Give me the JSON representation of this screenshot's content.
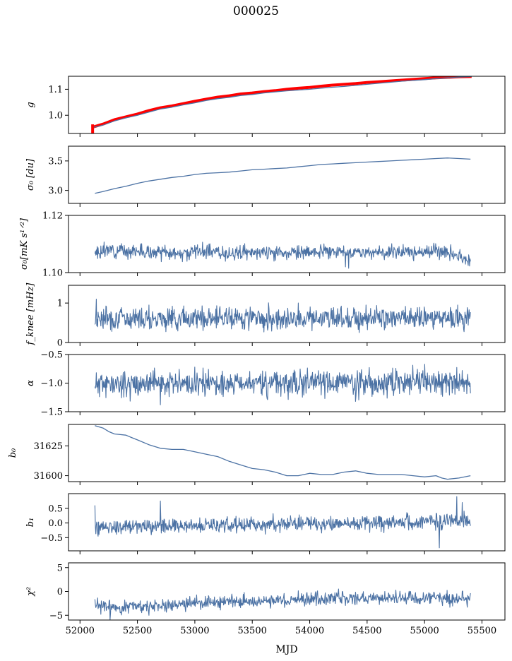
{
  "figure": {
    "title": "000025",
    "xlabel": "MJD",
    "x_ticks": [
      52000,
      52500,
      53000,
      53500,
      54000,
      54500,
      55000,
      55500
    ],
    "line_color": "#4c72a4",
    "fit_color": "#ff0000"
  },
  "chart_data": [
    {
      "type": "line",
      "ylabel": "g",
      "ylabel_kind": "g",
      "xlim": [
        51900,
        55700
      ],
      "ylim": [
        0.93,
        1.15
      ],
      "yticks": [
        1.0,
        1.1
      ],
      "series": [
        {
          "color": "#ff0000",
          "width": 4,
          "points": [
            [
              52115,
              0.955
            ],
            [
              52200,
              0.966
            ],
            [
              52300,
              0.983
            ],
            [
              52400,
              0.994
            ],
            [
              52500,
              1.005
            ],
            [
              52600,
              1.018
            ],
            [
              52700,
              1.029
            ],
            [
              52800,
              1.036
            ],
            [
              52900,
              1.045
            ],
            [
              53000,
              1.054
            ],
            [
              53100,
              1.062
            ],
            [
              53200,
              1.07
            ],
            [
              53300,
              1.075
            ],
            [
              53400,
              1.082
            ],
            [
              53500,
              1.086
            ],
            [
              53600,
              1.091
            ],
            [
              53700,
              1.095
            ],
            [
              53800,
              1.1
            ],
            [
              53900,
              1.104
            ],
            [
              54000,
              1.107
            ],
            [
              54100,
              1.112
            ],
            [
              54200,
              1.116
            ],
            [
              54300,
              1.119
            ],
            [
              54400,
              1.122
            ],
            [
              54500,
              1.126
            ],
            [
              54600,
              1.129
            ],
            [
              54700,
              1.132
            ],
            [
              54800,
              1.135
            ],
            [
              54900,
              1.138
            ],
            [
              55000,
              1.141
            ],
            [
              55100,
              1.144
            ],
            [
              55200,
              1.146
            ],
            [
              55300,
              1.148
            ],
            [
              55410,
              1.149
            ]
          ]
        },
        {
          "color": "#4c72a4",
          "width": 1.3,
          "points": [
            [
              52115,
              0.953
            ],
            [
              52200,
              0.962
            ],
            [
              52300,
              0.978
            ],
            [
              52400,
              0.99
            ],
            [
              52500,
              1.0
            ],
            [
              52600,
              1.012
            ],
            [
              52700,
              1.024
            ],
            [
              52800,
              1.031
            ],
            [
              52900,
              1.04
            ],
            [
              53000,
              1.048
            ],
            [
              53100,
              1.057
            ],
            [
              53200,
              1.064
            ],
            [
              53300,
              1.069
            ],
            [
              53400,
              1.076
            ],
            [
              53500,
              1.08
            ],
            [
              53600,
              1.086
            ],
            [
              53700,
              1.09
            ],
            [
              53800,
              1.094
            ],
            [
              53900,
              1.097
            ],
            [
              54000,
              1.1
            ],
            [
              54100,
              1.104
            ],
            [
              54200,
              1.108
            ],
            [
              54300,
              1.111
            ],
            [
              54400,
              1.115
            ],
            [
              54500,
              1.119
            ],
            [
              54600,
              1.123
            ],
            [
              54700,
              1.127
            ],
            [
              54800,
              1.131
            ],
            [
              54900,
              1.134
            ],
            [
              55000,
              1.137
            ],
            [
              55100,
              1.141
            ],
            [
              55200,
              1.144
            ],
            [
              55300,
              1.147
            ],
            [
              55410,
              1.149
            ]
          ]
        }
      ],
      "spike": {
        "x": 52110,
        "y_from": 0.93,
        "y_to": 0.965
      }
    },
    {
      "type": "line",
      "ylabel": "σ₀ [du]",
      "ylabel_kind": "sigma_du",
      "xlim": [
        51900,
        55700
      ],
      "ylim": [
        2.78,
        3.75
      ],
      "yticks": [
        3.0,
        3.5
      ],
      "series": [
        {
          "color": "#4c72a4",
          "width": 1.3,
          "points": [
            [
              52130,
              2.95
            ],
            [
              52200,
              2.98
            ],
            [
              52300,
              3.03
            ],
            [
              52400,
              3.07
            ],
            [
              52500,
              3.12
            ],
            [
              52600,
              3.16
            ],
            [
              52700,
              3.19
            ],
            [
              52800,
              3.22
            ],
            [
              52900,
              3.24
            ],
            [
              53000,
              3.27
            ],
            [
              53100,
              3.29
            ],
            [
              53200,
              3.3
            ],
            [
              53300,
              3.31
            ],
            [
              53400,
              3.33
            ],
            [
              53500,
              3.35
            ],
            [
              53600,
              3.36
            ],
            [
              53700,
              3.37
            ],
            [
              53800,
              3.38
            ],
            [
              53900,
              3.4
            ],
            [
              54000,
              3.42
            ],
            [
              54100,
              3.44
            ],
            [
              54200,
              3.45
            ],
            [
              54300,
              3.46
            ],
            [
              54400,
              3.47
            ],
            [
              54500,
              3.48
            ],
            [
              54600,
              3.49
            ],
            [
              54700,
              3.5
            ],
            [
              54800,
              3.51
            ],
            [
              54900,
              3.52
            ],
            [
              55000,
              3.53
            ],
            [
              55100,
              3.54
            ],
            [
              55200,
              3.55
            ],
            [
              55300,
              3.54
            ],
            [
              55400,
              3.53
            ]
          ]
        }
      ]
    },
    {
      "type": "noise",
      "ylabel": "σ₀[mK s¹ᐟ²]",
      "ylabel_kind": "sigma_mks",
      "xlim": [
        51900,
        55700
      ],
      "ylim": [
        1.1,
        1.12
      ],
      "yticks": [
        1.1,
        1.12
      ],
      "x_start": 52130,
      "x_end": 55400,
      "base": [
        [
          52130,
          1.1065
        ],
        [
          52250,
          1.108
        ],
        [
          52500,
          1.1075
        ],
        [
          52800,
          1.1065
        ],
        [
          53000,
          1.1075
        ],
        [
          53400,
          1.1068
        ],
        [
          53700,
          1.107
        ],
        [
          54000,
          1.107
        ],
        [
          54400,
          1.1072
        ],
        [
          54800,
          1.1072
        ],
        [
          55200,
          1.1075
        ],
        [
          55400,
          1.104
        ]
      ],
      "amp": 0.0012,
      "seed": 3,
      "dips": [
        [
          52560,
          1.1055
        ],
        [
          52950,
          1.1045
        ],
        [
          53100,
          1.1048
        ],
        [
          53800,
          1.1045
        ],
        [
          54310,
          1.102
        ],
        [
          54340,
          1.1015
        ],
        [
          54650,
          1.1045
        ],
        [
          55130,
          1.1045
        ],
        [
          55380,
          1.1025
        ]
      ]
    },
    {
      "type": "noise",
      "ylabel": "f_knee [mHz]",
      "ylabel_kind": "fknee",
      "xlim": [
        51900,
        55700
      ],
      "ylim": [
        0.0,
        1.45
      ],
      "yticks": [
        0,
        1
      ],
      "x_start": 52130,
      "x_end": 55400,
      "base": [
        [
          52130,
          0.62
        ],
        [
          55400,
          0.62
        ]
      ],
      "amp": 0.14,
      "seed": 7,
      "dips": [
        [
          52140,
          1.1
        ],
        [
          52600,
          0.95
        ],
        [
          53070,
          0.3
        ],
        [
          53480,
          0.9
        ],
        [
          53900,
          1.0
        ],
        [
          54490,
          0.95
        ],
        [
          55290,
          0.95
        ]
      ]
    },
    {
      "type": "noise",
      "ylabel": "α",
      "ylabel_kind": "alpha",
      "xlim": [
        51900,
        55700
      ],
      "ylim": [
        -1.5,
        -0.5
      ],
      "yticks": [
        -1.5,
        -1.0,
        -0.5
      ],
      "x_start": 52130,
      "x_end": 55400,
      "base": [
        [
          52130,
          -1.02
        ],
        [
          55400,
          -0.98
        ]
      ],
      "amp": 0.11,
      "seed": 11,
      "dips": [
        [
          52700,
          -1.38
        ],
        [
          53000,
          -0.72
        ],
        [
          54400,
          -1.32
        ],
        [
          55000,
          -0.67
        ],
        [
          55330,
          -0.78
        ]
      ]
    },
    {
      "type": "line",
      "ylabel": "b₀",
      "ylabel_kind": "b0",
      "xlim": [
        51900,
        55700
      ],
      "ylim": [
        31595,
        31643
      ],
      "yticks": [
        31600,
        31625
      ],
      "series": [
        {
          "color": "#4c72a4",
          "width": 1.3,
          "points": [
            [
              52130,
              31642
            ],
            [
              52200,
              31640
            ],
            [
              52250,
              31637
            ],
            [
              52300,
              31635
            ],
            [
              52400,
              31634
            ],
            [
              52450,
              31632
            ],
            [
              52500,
              31630
            ],
            [
              52600,
              31626
            ],
            [
              52700,
              31623
            ],
            [
              52800,
              31622
            ],
            [
              52900,
              31622
            ],
            [
              53000,
              31620
            ],
            [
              53100,
              31618
            ],
            [
              53200,
              31616
            ],
            [
              53300,
              31612
            ],
            [
              53400,
              31609
            ],
            [
              53500,
              31606
            ],
            [
              53600,
              31605
            ],
            [
              53700,
              31603
            ],
            [
              53800,
              31600
            ],
            [
              53900,
              31600
            ],
            [
              54000,
              31602
            ],
            [
              54100,
              31601
            ],
            [
              54200,
              31601
            ],
            [
              54300,
              31603
            ],
            [
              54400,
              31604
            ],
            [
              54500,
              31602
            ],
            [
              54600,
              31601
            ],
            [
              54700,
              31601
            ],
            [
              54800,
              31601
            ],
            [
              54900,
              31600
            ],
            [
              55000,
              31599
            ],
            [
              55100,
              31600
            ],
            [
              55150,
              31598
            ],
            [
              55200,
              31597
            ],
            [
              55300,
              31598
            ],
            [
              55400,
              31600
            ]
          ]
        }
      ]
    },
    {
      "type": "noise",
      "ylabel": "b₁",
      "ylabel_kind": "b1",
      "xlim": [
        51900,
        55700
      ],
      "ylim": [
        -0.95,
        1.0
      ],
      "yticks": [
        -0.5,
        0.0,
        0.5
      ],
      "x_start": 52130,
      "x_end": 55400,
      "base": [
        [
          52130,
          -0.15
        ],
        [
          52600,
          -0.1
        ],
        [
          53500,
          -0.05
        ],
        [
          54000,
          0.0
        ],
        [
          54500,
          0.0
        ],
        [
          55000,
          0.05
        ],
        [
          55400,
          0.1
        ]
      ],
      "amp": 0.13,
      "seed": 19,
      "dips": [
        [
          52130,
          0.6
        ],
        [
          52700,
          0.75
        ],
        [
          55130,
          -0.85
        ],
        [
          55280,
          0.9
        ],
        [
          55330,
          0.7
        ]
      ]
    },
    {
      "type": "noise",
      "ylabel": "χ²",
      "ylabel_kind": "chi2",
      "xlim": [
        51900,
        55700
      ],
      "ylim": [
        -6,
        6
      ],
      "yticks": [
        -5,
        0,
        5
      ],
      "x_start": 52130,
      "x_end": 55400,
      "base": [
        [
          52130,
          -3.0
        ],
        [
          52300,
          -3.3
        ],
        [
          52600,
          -3.0
        ],
        [
          53000,
          -2.5
        ],
        [
          53500,
          -2.0
        ],
        [
          54000,
          -1.6
        ],
        [
          54500,
          -1.5
        ],
        [
          55000,
          -1.5
        ],
        [
          55400,
          -1.5
        ]
      ],
      "amp": 0.7,
      "seed": 23,
      "dips": [
        [
          52260,
          -6.0
        ],
        [
          52600,
          -5.0
        ],
        [
          54250,
          0.5
        ],
        [
          54750,
          0.3
        ]
      ]
    }
  ]
}
